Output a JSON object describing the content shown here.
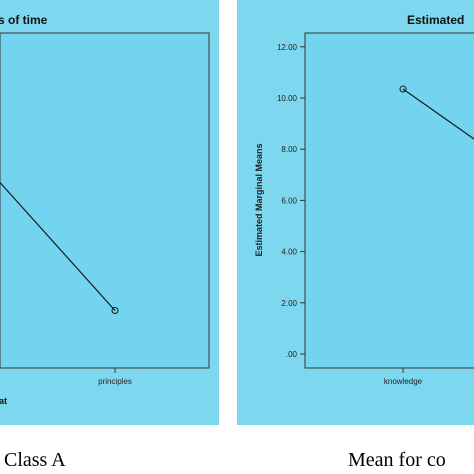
{
  "chart_data": [
    {
      "type": "line",
      "title": "s of time",
      "categories": [
        "principles"
      ],
      "series": [
        {
          "x": [
            "",
            "principles"
          ],
          "values": [
            6.7,
            1.7
          ]
        }
      ],
      "legend_fragment": "at",
      "caption": ", Class A"
    },
    {
      "type": "line",
      "title": "Estimated",
      "ylabel": "Estimated Marginal Means",
      "ylim": [
        0,
        12
      ],
      "y_ticks": [
        ".00",
        "2.00",
        "4.00",
        "6.00",
        "8.00",
        "10.00",
        "12.00"
      ],
      "categories": [
        "knowledge"
      ],
      "series": [
        {
          "x": [
            "knowledge",
            ""
          ],
          "values": [
            10.35,
            8.4
          ]
        }
      ],
      "caption": "Mean for co"
    }
  ]
}
